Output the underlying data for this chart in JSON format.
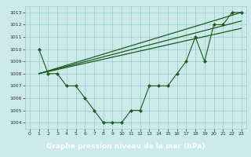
{
  "title": "Graphe pression niveau de la mer (hPa)",
  "background_color": "#cceaea",
  "grid_color": "#99cccc",
  "line_color": "#1a5c1a",
  "label_bg_color": "#4a8c4a",
  "label_text_color": "#ffffff",
  "xlim": [
    -0.5,
    23.5
  ],
  "ylim": [
    1003.5,
    1013.5
  ],
  "yticks": [
    1004,
    1005,
    1006,
    1007,
    1008,
    1009,
    1010,
    1011,
    1012,
    1013
  ],
  "xticks": [
    0,
    1,
    2,
    3,
    4,
    5,
    6,
    7,
    8,
    9,
    10,
    11,
    12,
    13,
    14,
    15,
    16,
    17,
    18,
    19,
    20,
    21,
    22,
    23
  ],
  "main_x": [
    1,
    2,
    3,
    4,
    5,
    6,
    7,
    8,
    9,
    10,
    11,
    12,
    13,
    14,
    15,
    16,
    17,
    18,
    19,
    20,
    21,
    22,
    23
  ],
  "main_y": [
    1010,
    1008,
    1008,
    1007,
    1007,
    1006,
    1005,
    1004,
    1004,
    1004,
    1005,
    1005,
    1007,
    1007,
    1007,
    1008,
    1009,
    1011,
    1009,
    1012,
    1012,
    1013,
    1013
  ],
  "trend1_x": [
    1,
    23
  ],
  "trend1_y": [
    1008,
    1013
  ],
  "trend2_x": [
    1,
    23
  ],
  "trend2_y": [
    1008,
    1012.3
  ],
  "trend3_x": [
    1,
    23
  ],
  "trend3_y": [
    1008,
    1011.7
  ]
}
